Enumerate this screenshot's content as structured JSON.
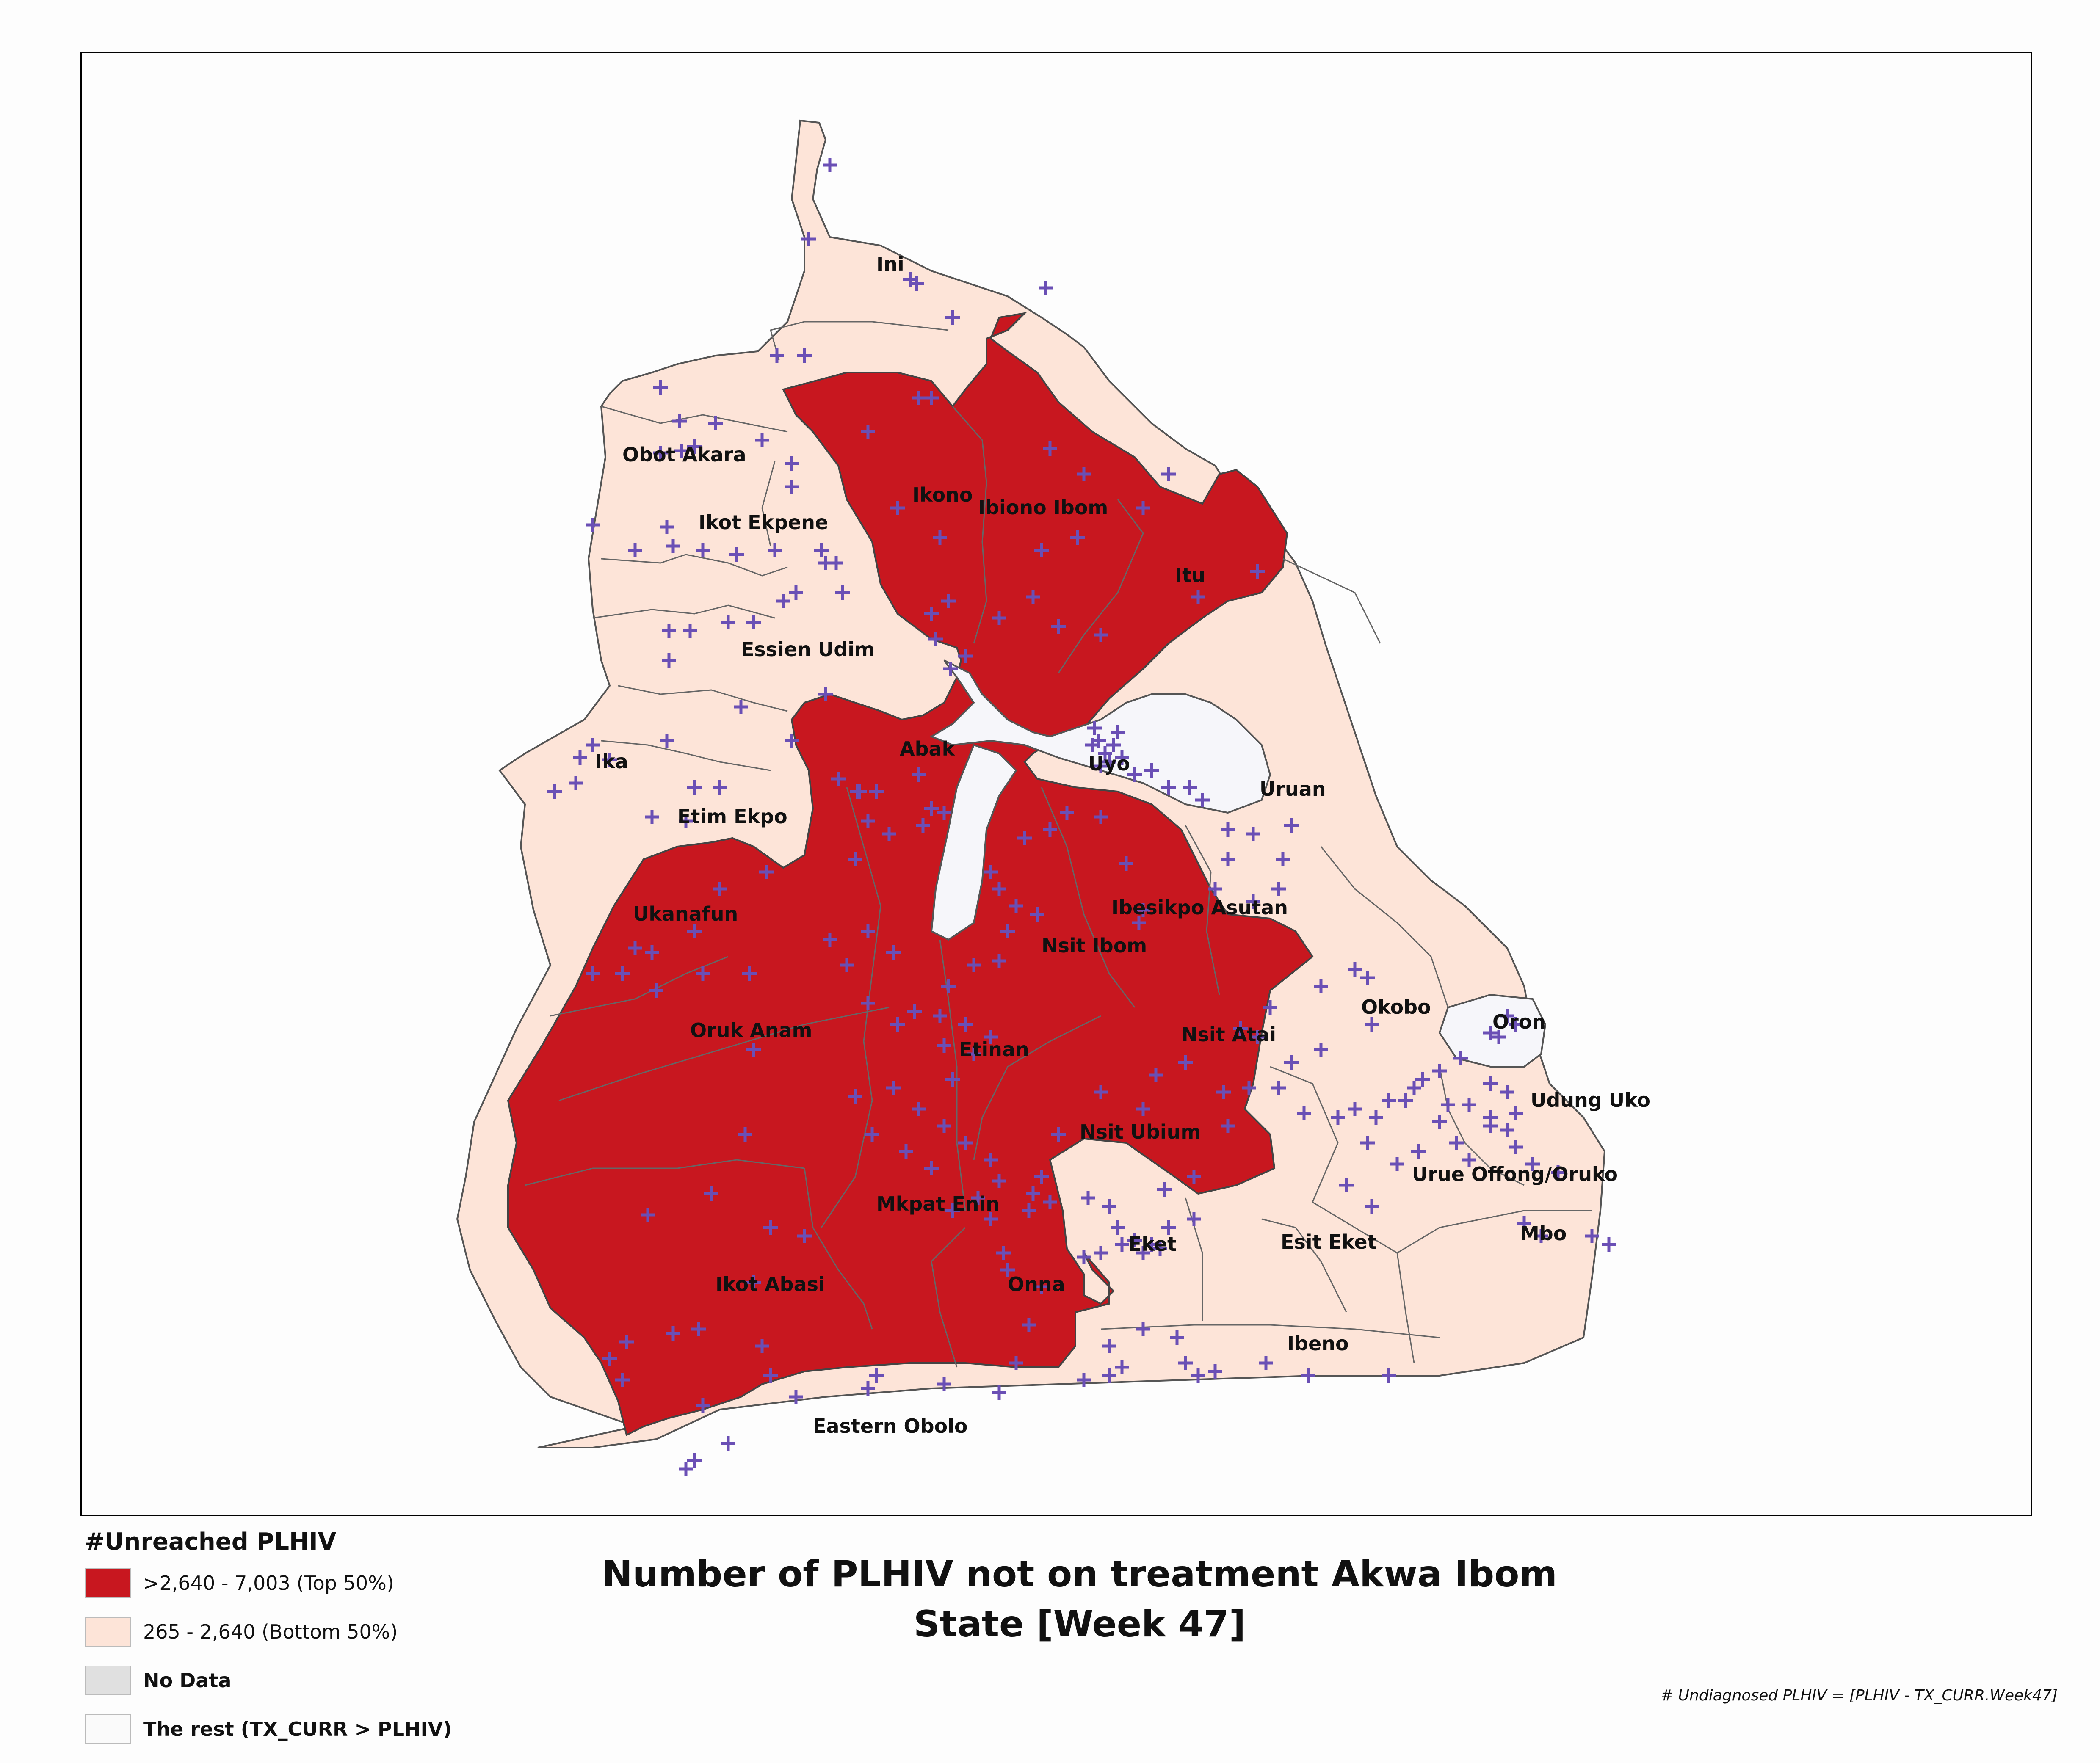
{
  "map": {
    "title": "Number of PLHIV not on treatment Akwa Ibom State [Week 47]",
    "footnote": "# Undiagnosed PLHIV = [PLHIV - TX_CURR.Week47]",
    "colors": {
      "top": "#c8171f",
      "bottom": "#fde4d8",
      "no_data": "#e0e0e0",
      "rest": "#f6f6fa",
      "facility": "#6a4fb5",
      "boundary": "#555555"
    },
    "legend": {
      "title": "#Unreached PLHIV",
      "items": [
        {
          "label": ">2,640 - 7,003 (Top 50%)",
          "color": "#c8171f",
          "bold": false
        },
        {
          "label": "265 - 2,640 (Bottom 50%)",
          "color": "#fde4d8",
          "bold": false
        },
        {
          "label": "No Data",
          "color": "#e0e0e0",
          "bold": true
        },
        {
          "label": "The rest (TX_CURR > PLHIV)",
          "color": "#fafafa",
          "bold": true
        }
      ]
    },
    "lgas": [
      {
        "name": "Ini",
        "category": "bottom"
      },
      {
        "name": "Obot Akara",
        "category": "bottom"
      },
      {
        "name": "Ikot Ekpene",
        "category": "bottom"
      },
      {
        "name": "Essien Udim",
        "category": "bottom"
      },
      {
        "name": "Ika",
        "category": "bottom"
      },
      {
        "name": "Etim Ekpo",
        "category": "bottom"
      },
      {
        "name": "Ikono",
        "category": "top"
      },
      {
        "name": "Ibiono Ibom",
        "category": "top"
      },
      {
        "name": "Itu",
        "category": "top"
      },
      {
        "name": "Abak",
        "category": "top"
      },
      {
        "name": "Uyo",
        "category": "rest"
      },
      {
        "name": "Uruan",
        "category": "bottom"
      },
      {
        "name": "Ukanafun",
        "category": "top"
      },
      {
        "name": "Ibesikpo Asutan",
        "category": "top"
      },
      {
        "name": "Nsit Ibom",
        "category": "top"
      },
      {
        "name": "Oruk Anam",
        "category": "top"
      },
      {
        "name": "Etinan",
        "category": "top"
      },
      {
        "name": "Nsit Atai",
        "category": "top"
      },
      {
        "name": "Okobo",
        "category": "bottom"
      },
      {
        "name": "Oron",
        "category": "rest"
      },
      {
        "name": "Udung Uko",
        "category": "bottom"
      },
      {
        "name": "Nsit Ubium",
        "category": "top"
      },
      {
        "name": "Urue Offong/Oruko",
        "category": "bottom"
      },
      {
        "name": "Mkpat Enin",
        "category": "top"
      },
      {
        "name": "Mbo",
        "category": "bottom"
      },
      {
        "name": "Eket",
        "category": "bottom"
      },
      {
        "name": "Esit Eket",
        "category": "bottom"
      },
      {
        "name": "Ikot Abasi",
        "category": "top"
      },
      {
        "name": "Onna",
        "category": "top"
      },
      {
        "name": "Ibeno",
        "category": "bottom"
      },
      {
        "name": "Eastern Obolo",
        "category": "bottom"
      }
    ]
  }
}
